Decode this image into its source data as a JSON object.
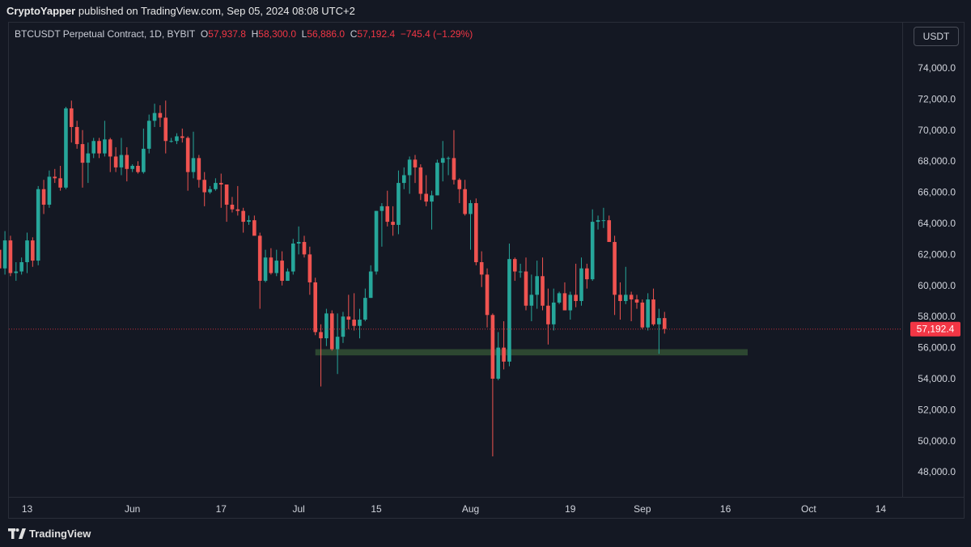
{
  "header": {
    "author": "CryptoYapper",
    "published_text": "published on TradingView.com, Sep 05, 2024 08:08 UTC+2"
  },
  "symbol": {
    "name": "BTCUSDT Perpetual Contract, 1D, BYBIT",
    "o_label": "O",
    "o_value": "57,937.8",
    "h_label": "H",
    "h_value": "58,300.0",
    "l_label": "L",
    "l_value": "56,886.0",
    "c_label": "C",
    "c_value": "57,192.4",
    "change": "−745.4 (−1.29%)"
  },
  "currency_button": "USDT",
  "brand": "TradingView",
  "colors": {
    "up": "#26a69a",
    "down": "#ef5350",
    "support_zone": "#2e4a33",
    "price_line": "#f23645"
  },
  "chart_data": {
    "type": "candlestick",
    "title": "BTCUSDT Perpetual Contract, 1D, BYBIT",
    "y_ticks": [
      "74,000.0",
      "72,000.0",
      "70,000.0",
      "68,000.0",
      "66,000.0",
      "64,000.0",
      "62,000.0",
      "60,000.0",
      "58,000.0",
      "56,000.0",
      "54,000.0",
      "52,000.0",
      "50,000.0",
      "48,000.0"
    ],
    "y_tick_values": [
      74000,
      72000,
      70000,
      68000,
      66000,
      64000,
      62000,
      60000,
      58000,
      56000,
      54000,
      52000,
      50000,
      48000
    ],
    "x_ticks": [
      {
        "label": "13",
        "date": "2024-05-13"
      },
      {
        "label": "Jun",
        "date": "2024-06-01"
      },
      {
        "label": "17",
        "date": "2024-06-17"
      },
      {
        "label": "Jul",
        "date": "2024-07-01"
      },
      {
        "label": "15",
        "date": "2024-07-15"
      },
      {
        "label": "Aug",
        "date": "2024-08-01"
      },
      {
        "label": "19",
        "date": "2024-08-19"
      },
      {
        "label": "Sep",
        "date": "2024-09-01"
      },
      {
        "label": "16",
        "date": "2024-09-16"
      },
      {
        "label": "Oct",
        "date": "2024-10-01"
      },
      {
        "label": "14",
        "date": "2024-10-14"
      }
    ],
    "last_price": 57192.4,
    "last_price_label": "57,192.4",
    "support_zone": {
      "from": "2024-07-04",
      "to": "2024-09-20",
      "low": 55500,
      "high": 55900
    },
    "candles": [
      [
        "2024-05-08",
        62300,
        63000,
        60100,
        61100
      ],
      [
        "2024-05-09",
        61100,
        63500,
        60700,
        62900
      ],
      [
        "2024-05-10",
        62900,
        63200,
        60600,
        60800
      ],
      [
        "2024-05-11",
        60800,
        61500,
        60300,
        60900
      ],
      [
        "2024-05-12",
        60900,
        61800,
        60700,
        61500
      ],
      [
        "2024-05-13",
        61500,
        63400,
        60800,
        62900
      ],
      [
        "2024-05-14",
        62900,
        63100,
        61200,
        61600
      ],
      [
        "2024-05-15",
        61600,
        66400,
        61300,
        66200
      ],
      [
        "2024-05-16",
        66200,
        66800,
        64600,
        65200
      ],
      [
        "2024-05-17",
        65200,
        67400,
        65000,
        67000
      ],
      [
        "2024-05-18",
        67000,
        67500,
        66600,
        66900
      ],
      [
        "2024-05-19",
        66900,
        67700,
        66100,
        66300
      ],
      [
        "2024-05-20",
        66300,
        71500,
        66200,
        71400
      ],
      [
        "2024-05-21",
        71400,
        71900,
        69200,
        70200
      ],
      [
        "2024-05-22",
        70200,
        70600,
        68800,
        69100
      ],
      [
        "2024-05-23",
        69100,
        70000,
        66300,
        67900
      ],
      [
        "2024-05-24",
        67900,
        69200,
        66600,
        68500
      ],
      [
        "2024-05-25",
        68500,
        69500,
        68200,
        69300
      ],
      [
        "2024-05-26",
        69300,
        69500,
        68200,
        68500
      ],
      [
        "2024-05-27",
        68500,
        70600,
        68300,
        69400
      ],
      [
        "2024-05-28",
        69400,
        69500,
        67300,
        68300
      ],
      [
        "2024-05-29",
        68300,
        68900,
        67300,
        67600
      ],
      [
        "2024-05-30",
        67600,
        69500,
        67100,
        68400
      ],
      [
        "2024-05-31",
        68400,
        68900,
        66700,
        67500
      ],
      [
        "2024-06-01",
        67500,
        67800,
        67300,
        67700
      ],
      [
        "2024-06-02",
        67700,
        68000,
        67200,
        67300
      ],
      [
        "2024-06-03",
        67300,
        70100,
        67200,
        68800
      ],
      [
        "2024-06-04",
        68800,
        71000,
        68500,
        70600
      ],
      [
        "2024-06-05",
        70600,
        71700,
        70200,
        71100
      ],
      [
        "2024-06-06",
        71100,
        71600,
        70200,
        70800
      ],
      [
        "2024-06-07",
        70800,
        71900,
        68500,
        69300
      ],
      [
        "2024-06-08",
        69300,
        69500,
        69200,
        69300
      ],
      [
        "2024-06-09",
        69300,
        69800,
        69100,
        69600
      ],
      [
        "2024-06-10",
        69600,
        70100,
        69200,
        69500
      ],
      [
        "2024-06-11",
        69500,
        69600,
        66100,
        67300
      ],
      [
        "2024-06-12",
        67300,
        69900,
        66900,
        68200
      ],
      [
        "2024-06-13",
        68200,
        68400,
        66300,
        66800
      ],
      [
        "2024-06-14",
        66800,
        67300,
        65100,
        66000
      ],
      [
        "2024-06-15",
        66000,
        66400,
        65900,
        66200
      ],
      [
        "2024-06-16",
        66200,
        66900,
        66100,
        66600
      ],
      [
        "2024-06-17",
        66600,
        67200,
        65000,
        66500
      ],
      [
        "2024-06-18",
        66500,
        66500,
        64100,
        65200
      ],
      [
        "2024-06-19",
        65200,
        65700,
        64700,
        64900
      ],
      [
        "2024-06-20",
        64900,
        66400,
        64500,
        64800
      ],
      [
        "2024-06-21",
        64800,
        65000,
        63400,
        64100
      ],
      [
        "2024-06-22",
        64100,
        64500,
        63900,
        64200
      ],
      [
        "2024-06-23",
        64200,
        64500,
        63300,
        63200
      ],
      [
        "2024-06-24",
        63200,
        63400,
        58500,
        60300
      ],
      [
        "2024-06-25",
        60300,
        62300,
        60200,
        61800
      ],
      [
        "2024-06-26",
        61800,
        62400,
        60700,
        60800
      ],
      [
        "2024-06-27",
        60800,
        62300,
        60600,
        61600
      ],
      [
        "2024-06-28",
        61600,
        62200,
        60000,
        60300
      ],
      [
        "2024-06-29",
        60300,
        61100,
        60300,
        60900
      ],
      [
        "2024-06-30",
        60900,
        63000,
        60700,
        62700
      ],
      [
        "2024-07-01",
        62700,
        63800,
        62000,
        62800
      ],
      [
        "2024-07-02",
        62800,
        63200,
        61800,
        62000
      ],
      [
        "2024-07-03",
        62000,
        62500,
        59400,
        60200
      ],
      [
        "2024-07-04",
        60200,
        60500,
        56800,
        57000
      ],
      [
        "2024-07-05",
        57000,
        57500,
        53500,
        56600
      ],
      [
        "2024-07-06",
        56600,
        58500,
        56100,
        58200
      ],
      [
        "2024-07-07",
        58200,
        58400,
        55800,
        55900
      ],
      [
        "2024-07-08",
        55900,
        58200,
        54300,
        56700
      ],
      [
        "2024-07-09",
        56700,
        58300,
        56300,
        58000
      ],
      [
        "2024-07-10",
        58000,
        59400,
        57200,
        57800
      ],
      [
        "2024-07-11",
        57800,
        59500,
        57100,
        57400
      ],
      [
        "2024-07-12",
        57400,
        58500,
        56600,
        57800
      ],
      [
        "2024-07-13",
        57800,
        59800,
        57700,
        59200
      ],
      [
        "2024-07-14",
        59200,
        61300,
        59200,
        60900
      ],
      [
        "2024-07-15",
        60900,
        64800,
        60700,
        64800
      ],
      [
        "2024-07-16",
        64800,
        65300,
        62500,
        65100
      ],
      [
        "2024-07-17",
        65100,
        66100,
        63800,
        64100
      ],
      [
        "2024-07-18",
        64100,
        65100,
        63200,
        63900
      ],
      [
        "2024-07-19",
        63900,
        67400,
        63300,
        66600
      ],
      [
        "2024-07-20",
        66600,
        67600,
        66200,
        67100
      ],
      [
        "2024-07-21",
        67100,
        68300,
        65900,
        68100
      ],
      [
        "2024-07-22",
        68100,
        68400,
        66600,
        67600
      ],
      [
        "2024-07-23",
        67600,
        67800,
        65500,
        65900
      ],
      [
        "2024-07-24",
        65900,
        67100,
        65100,
        65400
      ],
      [
        "2024-07-25",
        65400,
        66100,
        63600,
        65800
      ],
      [
        "2024-07-26",
        65800,
        68100,
        65800,
        67900
      ],
      [
        "2024-07-27",
        67900,
        69300,
        66700,
        68200
      ],
      [
        "2024-07-28",
        68200,
        68300,
        67100,
        68200
      ],
      [
        "2024-07-29",
        68200,
        70000,
        66500,
        66800
      ],
      [
        "2024-07-30",
        66800,
        66900,
        65300,
        66200
      ],
      [
        "2024-07-31",
        66200,
        66800,
        64500,
        64600
      ],
      [
        "2024-08-01",
        64600,
        65500,
        62300,
        65300
      ],
      [
        "2024-08-02",
        65300,
        65600,
        61300,
        61500
      ],
      [
        "2024-08-03",
        61500,
        62200,
        59900,
        60700
      ],
      [
        "2024-08-04",
        60700,
        61100,
        57300,
        58100
      ],
      [
        "2024-08-05",
        58100,
        58200,
        49000,
        54000
      ],
      [
        "2024-08-06",
        54000,
        57000,
        53900,
        56000
      ],
      [
        "2024-08-07",
        56000,
        57700,
        54600,
        55100
      ],
      [
        "2024-08-08",
        55100,
        62700,
        54800,
        61700
      ],
      [
        "2024-08-09",
        61700,
        61800,
        60300,
        60900
      ],
      [
        "2024-08-10",
        60900,
        61400,
        60500,
        60900
      ],
      [
        "2024-08-11",
        60900,
        61800,
        58400,
        58700
      ],
      [
        "2024-08-12",
        58700,
        60700,
        57700,
        59400
      ],
      [
        "2024-08-13",
        59400,
        61600,
        58500,
        60600
      ],
      [
        "2024-08-14",
        60600,
        61800,
        58400,
        58700
      ],
      [
        "2024-08-15",
        58700,
        59800,
        56200,
        57500
      ],
      [
        "2024-08-16",
        57500,
        59800,
        57100,
        58900
      ],
      [
        "2024-08-17",
        58900,
        59600,
        58800,
        59500
      ],
      [
        "2024-08-18",
        59500,
        60200,
        58400,
        58400
      ],
      [
        "2024-08-19",
        58400,
        59600,
        57800,
        59400
      ],
      [
        "2024-08-20",
        59400,
        61400,
        58600,
        59000
      ],
      [
        "2024-08-21",
        59000,
        61800,
        58700,
        61100
      ],
      [
        "2024-08-22",
        61100,
        61400,
        59800,
        60400
      ],
      [
        "2024-08-23",
        60400,
        64900,
        60300,
        64100
      ],
      [
        "2024-08-24",
        64100,
        64500,
        63600,
        64200
      ],
      [
        "2024-08-25",
        64200,
        65000,
        63700,
        64200
      ],
      [
        "2024-08-26",
        64200,
        64500,
        62800,
        62800
      ],
      [
        "2024-08-27",
        62800,
        63200,
        58100,
        59400
      ],
      [
        "2024-08-28",
        59400,
        60200,
        57800,
        59000
      ],
      [
        "2024-08-29",
        59000,
        61200,
        58800,
        59400
      ],
      [
        "2024-08-30",
        59400,
        59600,
        57700,
        59100
      ],
      [
        "2024-08-31",
        59100,
        59400,
        58500,
        58900
      ],
      [
        "2024-09-01",
        58900,
        59100,
        57200,
        57300
      ],
      [
        "2024-09-02",
        57300,
        59500,
        57100,
        59100
      ],
      [
        "2024-09-03",
        59100,
        59800,
        57400,
        57500
      ],
      [
        "2024-09-04",
        57500,
        58500,
        55600,
        57900
      ],
      [
        "2024-09-05",
        57900,
        58300,
        56900,
        57200
      ]
    ]
  }
}
